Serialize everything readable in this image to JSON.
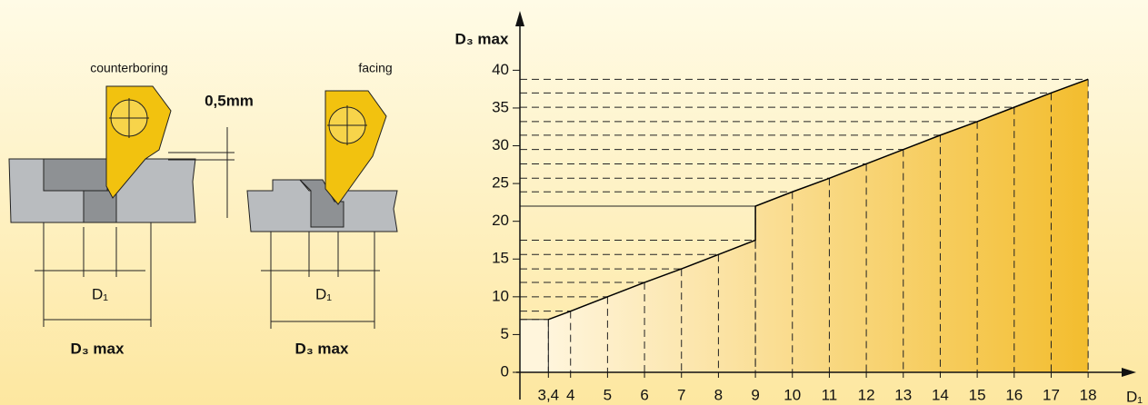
{
  "figures": [
    {
      "label": "counterboring",
      "dimension": "0,5mm",
      "d1": "D₁",
      "d3": "D₃ max"
    },
    {
      "label": "facing",
      "d1": "D₁",
      "d3": "D₃ max"
    }
  ],
  "chart_data": {
    "type": "line",
    "y_label": "D₃ max",
    "x_label": "D₁",
    "xlim": [
      2.63,
      19.3
    ],
    "ylim": [
      0,
      47.5
    ],
    "xticks": [
      {
        "value": 3.4,
        "label": "3,4"
      },
      4,
      5,
      6,
      7,
      8,
      9,
      10,
      11,
      12,
      13,
      14,
      15,
      16,
      17,
      18
    ],
    "yticks": [
      0,
      5,
      10,
      15,
      20,
      25,
      30,
      35,
      40
    ],
    "x": [
      3.4,
      4,
      5,
      6,
      7,
      8,
      9,
      9,
      10,
      11,
      12,
      13,
      14,
      15,
      16,
      17,
      18
    ],
    "values": [
      7,
      8.1,
      10,
      11.9,
      13.7,
      15.6,
      17.5,
      22,
      23.9,
      25.7,
      27.6,
      29.5,
      31.4,
      33.2,
      35.1,
      37,
      38.8
    ],
    "color": "#000000"
  }
}
